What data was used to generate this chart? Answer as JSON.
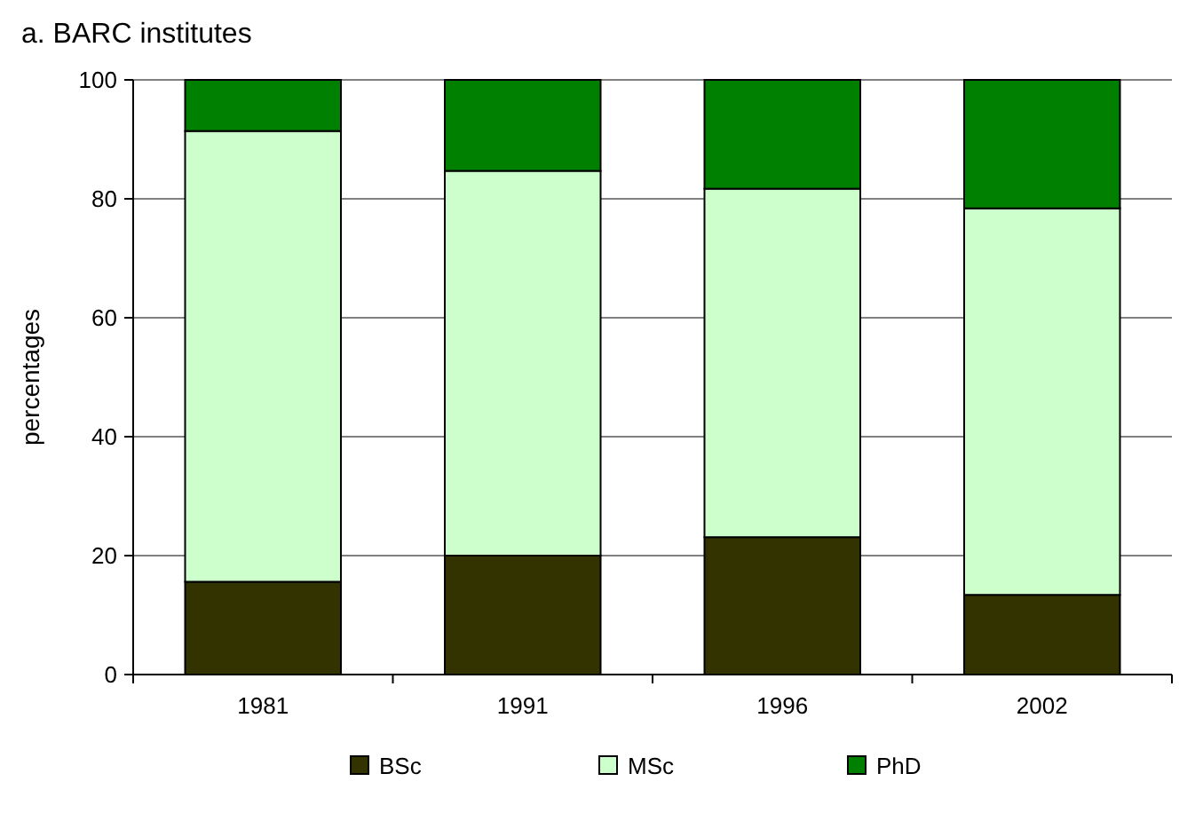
{
  "chart_data": {
    "type": "bar",
    "title": "a. BARC institutes",
    "ylabel": "percentages",
    "categories": [
      "1981",
      "1991",
      "1996",
      "2002"
    ],
    "stacked": true,
    "series": [
      {
        "name": "BSc",
        "color": "#333300",
        "values": [
          15.6,
          20,
          23.1,
          13.4
        ]
      },
      {
        "name": "MSc",
        "color": "#ccffcc",
        "values": [
          75.8,
          64.7,
          58.6,
          65
        ]
      },
      {
        "name": "PhD",
        "color": "#008000",
        "values": [
          8.6,
          15.3,
          18.3,
          21.6
        ]
      }
    ],
    "ylim": [
      0,
      100
    ],
    "yticks": [
      0,
      20,
      40,
      60,
      80,
      100
    ],
    "grid": "y",
    "legend": "bottom"
  }
}
